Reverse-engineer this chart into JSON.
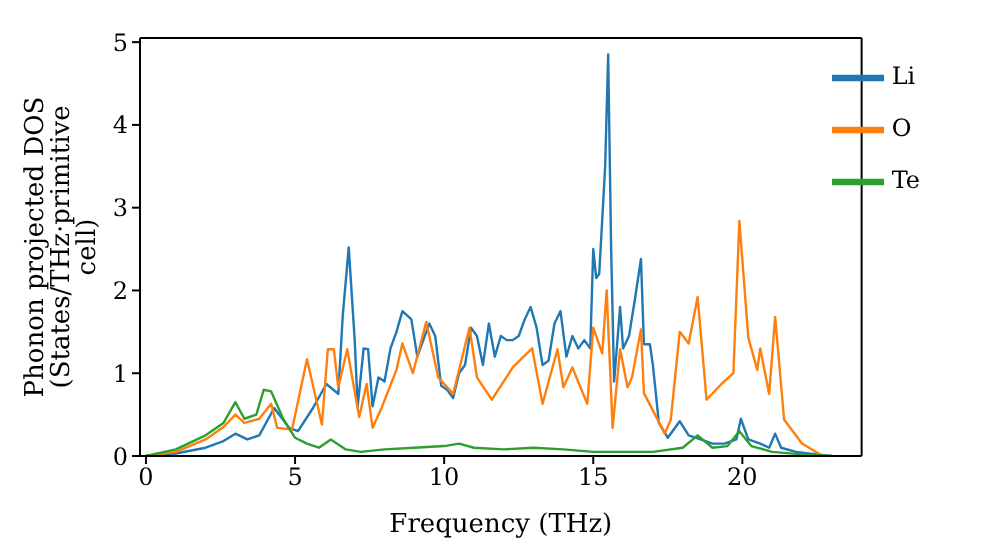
{
  "chart_data": {
    "type": "line",
    "xlabel": "Frequency (THz)",
    "ylabel": "Phonon projected DOS (States/THz·primitive cell)",
    "xlim": [
      -0.2,
      24
    ],
    "ylim": [
      0,
      5.05
    ],
    "xticks": [
      0,
      5,
      10,
      15,
      20
    ],
    "yticks": [
      0,
      1,
      2,
      3,
      4,
      5
    ],
    "legend": "top right",
    "grid": false,
    "marker": "none",
    "line_style": "solid",
    "series": [
      {
        "name": "Li",
        "color": "#1f77b4",
        "x": [
          0,
          1,
          2,
          2.6,
          3,
          3.4,
          3.8,
          4.3,
          4.8,
          5.1,
          5.6,
          6.05,
          6.45,
          6.6,
          6.8,
          7.0,
          7.1,
          7.3,
          7.45,
          7.6,
          7.8,
          8.0,
          8.2,
          8.4,
          8.6,
          8.9,
          9.1,
          9.3,
          9.5,
          9.7,
          9.9,
          10.1,
          10.3,
          10.5,
          10.7,
          10.9,
          11.1,
          11.3,
          11.5,
          11.7,
          11.9,
          12.1,
          12.3,
          12.5,
          12.7,
          12.9,
          13.1,
          13.3,
          13.5,
          13.7,
          13.9,
          14.1,
          14.3,
          14.5,
          14.7,
          14.9,
          15.0,
          15.1,
          15.2,
          15.4,
          15.5,
          15.6,
          15.7,
          15.9,
          16.0,
          16.2,
          16.4,
          16.6,
          16.7,
          16.9,
          17.0,
          17.2,
          17.5,
          17.9,
          18.2,
          18.6,
          19.0,
          19.4,
          19.8,
          19.95,
          20.2,
          20.6,
          20.9,
          21.1,
          21.3,
          21.8,
          22.5,
          23
        ],
        "values": [
          0,
          0.03,
          0.1,
          0.18,
          0.27,
          0.2,
          0.25,
          0.58,
          0.34,
          0.3,
          0.58,
          0.87,
          0.75,
          1.7,
          2.52,
          1.4,
          0.6,
          1.3,
          1.29,
          0.6,
          0.95,
          0.9,
          1.3,
          1.5,
          1.75,
          1.65,
          1.2,
          1.4,
          1.6,
          1.45,
          0.85,
          0.8,
          0.7,
          1.0,
          1.1,
          1.55,
          1.45,
          1.1,
          1.6,
          1.2,
          1.45,
          1.4,
          1.4,
          1.45,
          1.65,
          1.8,
          1.55,
          1.1,
          1.15,
          1.6,
          1.75,
          1.2,
          1.45,
          1.3,
          1.4,
          1.3,
          2.5,
          2.15,
          2.2,
          3.5,
          4.85,
          2.5,
          0.9,
          1.8,
          1.3,
          1.45,
          1.9,
          2.38,
          1.35,
          1.35,
          1.1,
          0.4,
          0.22,
          0.42,
          0.25,
          0.2,
          0.15,
          0.15,
          0.2,
          0.45,
          0.2,
          0.15,
          0.1,
          0.27,
          0.1,
          0.05,
          0.02,
          0
        ]
      },
      {
        "name": "O",
        "color": "#ff7f0e",
        "x": [
          0,
          1,
          2,
          2.6,
          3.0,
          3.3,
          3.8,
          4.2,
          4.4,
          4.9,
          5.4,
          5.9,
          6.1,
          6.3,
          6.45,
          6.75,
          7.15,
          7.4,
          7.6,
          7.9,
          8.4,
          8.6,
          8.95,
          9.4,
          9.8,
          10.3,
          10.85,
          11.1,
          11.6,
          12.3,
          12.95,
          13.3,
          13.8,
          14.0,
          14.3,
          14.8,
          15.0,
          15.3,
          15.45,
          15.65,
          15.9,
          16.15,
          16.3,
          16.6,
          16.7,
          17.4,
          17.6,
          17.9,
          18.2,
          18.5,
          18.8,
          19.3,
          19.7,
          19.9,
          20.2,
          20.5,
          20.6,
          20.9,
          21.1,
          21.4,
          22.0,
          22.7
        ],
        "values": [
          0,
          0.05,
          0.2,
          0.35,
          0.5,
          0.4,
          0.45,
          0.63,
          0.34,
          0.32,
          1.17,
          0.38,
          1.29,
          1.29,
          0.83,
          1.29,
          0.47,
          0.87,
          0.34,
          0.58,
          1.04,
          1.36,
          1.0,
          1.62,
          0.95,
          0.75,
          1.55,
          0.95,
          0.68,
          1.07,
          1.3,
          0.63,
          1.29,
          0.83,
          1.07,
          0.63,
          1.55,
          1.24,
          2.0,
          0.34,
          1.29,
          0.83,
          0.95,
          1.53,
          0.76,
          0.27,
          0.44,
          1.5,
          1.36,
          1.92,
          0.68,
          0.87,
          1.0,
          2.84,
          1.43,
          1.04,
          1.3,
          0.75,
          1.68,
          0.44,
          0.15,
          0
        ]
      },
      {
        "name": "Te",
        "color": "#2ca02c",
        "x": [
          0,
          1,
          2,
          2.6,
          3.0,
          3.3,
          3.7,
          3.95,
          4.2,
          4.6,
          5.0,
          5.4,
          5.8,
          6.2,
          6.7,
          7.2,
          8,
          9,
          10,
          10.5,
          11,
          12,
          13,
          14,
          15,
          16,
          17,
          18,
          18.5,
          19,
          19.5,
          19.9,
          20.3,
          21,
          22,
          23
        ],
        "values": [
          0,
          0.08,
          0.25,
          0.4,
          0.65,
          0.45,
          0.5,
          0.8,
          0.78,
          0.45,
          0.22,
          0.15,
          0.1,
          0.2,
          0.08,
          0.05,
          0.08,
          0.1,
          0.12,
          0.15,
          0.1,
          0.08,
          0.1,
          0.08,
          0.05,
          0.05,
          0.05,
          0.1,
          0.25,
          0.1,
          0.12,
          0.3,
          0.12,
          0.05,
          0.02,
          0
        ]
      }
    ]
  }
}
